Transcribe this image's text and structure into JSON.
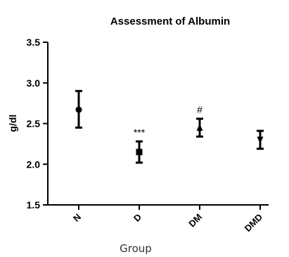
{
  "chart_data": {
    "type": "scatter",
    "title": "Assessment of Albumin",
    "xlabel": "Group",
    "ylabel": "g/dl",
    "ylim": [
      1.5,
      3.5
    ],
    "yticks": [
      "1.5",
      "2.0",
      "2.5",
      "3.0",
      "3.5"
    ],
    "categories": [
      "N",
      "D",
      "DM",
      "DMD"
    ],
    "series": [
      {
        "markers": [
          "circle",
          "square",
          "triangle-up",
          "triangle-down"
        ],
        "values": [
          2.67,
          2.15,
          2.45,
          2.3
        ],
        "error_low": [
          2.45,
          2.02,
          2.34,
          2.19
        ],
        "error_high": [
          2.9,
          2.28,
          2.56,
          2.41
        ]
      }
    ],
    "annotations": [
      "",
      "***",
      "#",
      ""
    ],
    "grid": false
  }
}
